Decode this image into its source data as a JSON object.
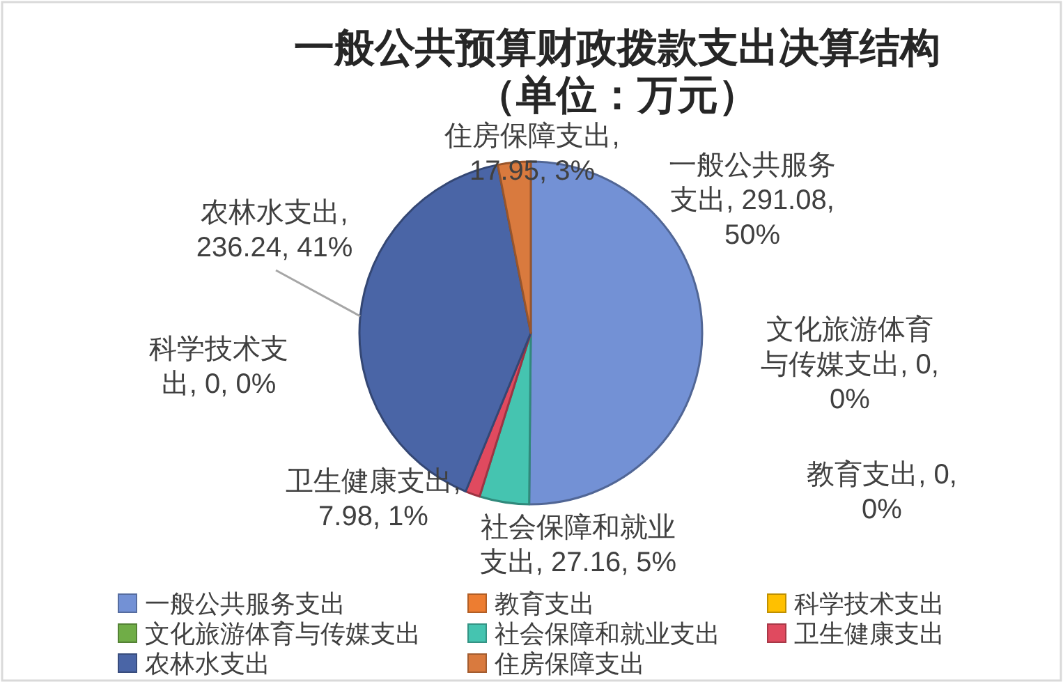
{
  "chart_data": {
    "type": "pie",
    "title": "一般公共预算财政拨款支出决算结构",
    "subtitle": "（单位：万元）",
    "categories": [
      "一般公共服务支出",
      "教育支出",
      "科学技术支出",
      "文化旅游体育与传媒支出",
      "社会保障和就业支出",
      "卫生健康支出",
      "农林水支出",
      "住房保障支出"
    ],
    "values": [
      291.08,
      0,
      0,
      0,
      27.16,
      7.98,
      236.24,
      17.95
    ],
    "colors": [
      "#7391d5",
      "#ed7d31",
      "#ffc000",
      "#70ad47",
      "#45c4b0",
      "#e04a5f",
      "#4a65a6",
      "#d97a3e"
    ],
    "value_labels": [
      "一般公共服务支出, 291.08, 50%",
      "教育支出, 0, 0%",
      "科学技术支出, 0, 0%",
      "文化旅游体育与传媒支出, 0, 0%",
      "社会保障和就业支出, 27.16, 5%",
      "卫生健康支出, 7.98, 1%",
      "农林水支出, 236.24, 41%",
      "住房保障支出, 17.95, 3%"
    ],
    "legend": "bottom"
  }
}
